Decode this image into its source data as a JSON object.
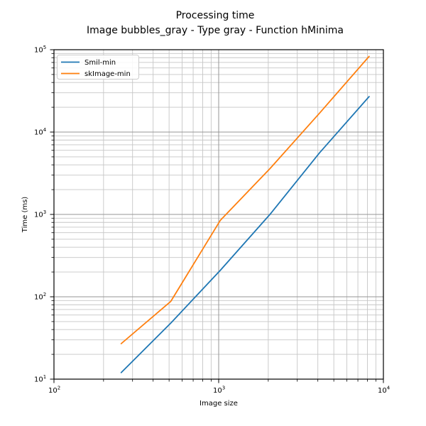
{
  "title": {
    "line1": "Processing time",
    "line2": "Image bubbles_gray - Type gray - Function hMinima"
  },
  "chart_data": {
    "type": "line",
    "x": [
      256,
      512,
      1024,
      2048,
      4096,
      8192
    ],
    "series": [
      {
        "name": "Smil-min",
        "color": "#1f77b4",
        "values": [
          12,
          48,
          210,
          1000,
          5600,
          27000
        ]
      },
      {
        "name": "skImage-min",
        "color": "#ff7f0e",
        "values": [
          27,
          88,
          850,
          3600,
          17000,
          83000
        ]
      }
    ],
    "xlabel": "Image size",
    "ylabel": "Time (ms)",
    "xscale": "log",
    "yscale": "log",
    "xlim": [
      100,
      10000
    ],
    "ylim": [
      10,
      100000
    ],
    "grid": "both",
    "legend_position": "upper left",
    "x_ticks": [
      {
        "base": "10",
        "exp": "2",
        "value": 100
      },
      {
        "base": "10",
        "exp": "3",
        "value": 1000
      },
      {
        "base": "10",
        "exp": "4",
        "value": 10000
      }
    ],
    "y_ticks": [
      {
        "base": "10",
        "exp": "1",
        "value": 10
      },
      {
        "base": "10",
        "exp": "2",
        "value": 100
      },
      {
        "base": "10",
        "exp": "3",
        "value": 1000
      },
      {
        "base": "10",
        "exp": "4",
        "value": 10000
      },
      {
        "base": "10",
        "exp": "5",
        "value": 100000
      }
    ]
  },
  "colors": {
    "grid_major": "#969696",
    "grid_minor": "#c6c6c6",
    "spine": "#000000",
    "legend_edge": "#cccccc",
    "legend_face": "#ffffff"
  }
}
